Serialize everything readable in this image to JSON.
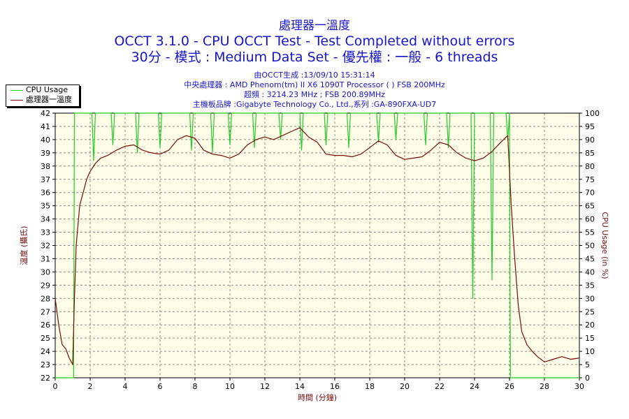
{
  "header": {
    "title": "處理器一溫度",
    "subtitle1": "OCCT 3.1.0 - CPU OCCT Test - Test Completed without errors",
    "subtitle2": "30分 - 模式 : Medium Data Set - 優先權 : 一般 - 6 threads"
  },
  "info": {
    "line1": "由OCCT生成 :13/09/10 15:31:14",
    "line2": "中央處理器 : AMD Phenom(tm) II X6 1090T Processor (  ) FSB 200MHz",
    "line3": "超頻 : 3214.23 MHz ; FSB 200.89MHz",
    "line4": "主機板品牌 :Gigabyte Technology Co., Ltd.,系列 :GA-890FXA-UD7"
  },
  "colors": {
    "temperature": "#7a0b0b",
    "cpu_usage": "#22cc22",
    "plot_background": "#fdfde8",
    "grid": "#8a8a80",
    "title_text": "#1515cc"
  },
  "chart_data": {
    "type": "line",
    "xlabel": "時間 (分鐘)",
    "ylabel_left": "溫度 (攝氏)",
    "ylabel_right": "CPU Usage (in %)",
    "xlim": [
      0,
      30
    ],
    "ylim_left": [
      22,
      42
    ],
    "ylim_right": [
      0,
      100
    ],
    "x_ticks": [
      "0",
      "2",
      "4",
      "6",
      "8",
      "10",
      "12",
      "14",
      "16",
      "18",
      "20",
      "22",
      "24",
      "26",
      "28",
      "30"
    ],
    "y_ticks_left": [
      "22",
      "23",
      "24",
      "25",
      "26",
      "27",
      "28",
      "29",
      "30",
      "31",
      "32",
      "33",
      "34",
      "35",
      "36",
      "37",
      "38",
      "39",
      "40",
      "41",
      "42"
    ],
    "y_ticks_right": [
      "0",
      "5",
      "10",
      "15",
      "20",
      "25",
      "30",
      "35",
      "40",
      "45",
      "50",
      "55",
      "60",
      "65",
      "70",
      "75",
      "80",
      "85",
      "90",
      "95",
      "100"
    ],
    "grid": true,
    "legend_position": "top-left",
    "series": [
      {
        "name": "CPU Usage",
        "axis": "right",
        "x": [
          0,
          0.95,
          1.0,
          1.05,
          1.1,
          1.5,
          2.1,
          2.2,
          2.3,
          3.2,
          3.3,
          3.4,
          4.6,
          4.7,
          4.8,
          5.9,
          6.0,
          6.1,
          7.7,
          7.8,
          7.9,
          8.9,
          9.0,
          9.1,
          9.9,
          10.0,
          10.1,
          11.3,
          11.4,
          11.5,
          12.8,
          12.9,
          13.0,
          14.0,
          14.1,
          14.2,
          15.4,
          15.5,
          15.6,
          16.7,
          16.8,
          16.9,
          18.4,
          18.5,
          18.6,
          19.4,
          19.5,
          19.6,
          21.1,
          21.2,
          21.3,
          22.4,
          22.5,
          22.6,
          23.8,
          23.9,
          24.0,
          24.9,
          25.0,
          25.1,
          25.8,
          25.9,
          26.0,
          26.05,
          26.1,
          30
        ],
        "values": [
          0,
          0,
          0,
          0,
          100,
          100,
          100,
          82,
          100,
          100,
          88,
          100,
          100,
          85,
          100,
          100,
          87,
          100,
          100,
          86,
          100,
          100,
          85,
          100,
          100,
          88,
          100,
          100,
          87,
          100,
          100,
          90,
          100,
          100,
          86,
          100,
          100,
          88,
          100,
          100,
          87,
          100,
          100,
          89,
          100,
          100,
          90,
          100,
          100,
          88,
          100,
          100,
          87,
          100,
          100,
          30,
          100,
          100,
          37,
          100,
          100,
          90,
          100,
          0,
          0,
          0
        ]
      },
      {
        "name": "處理器一溫度",
        "axis": "left",
        "x": [
          0,
          0.2,
          0.4,
          0.6,
          0.8,
          1.0,
          1.1,
          1.2,
          1.4,
          1.6,
          1.8,
          2.0,
          2.3,
          2.6,
          3.0,
          3.5,
          4.0,
          4.5,
          5.0,
          5.5,
          6.0,
          6.5,
          7.0,
          7.5,
          8.0,
          8.5,
          9.0,
          9.5,
          10.0,
          10.5,
          11.0,
          11.5,
          12.0,
          12.5,
          13.0,
          13.5,
          14.0,
          14.5,
          15.0,
          15.5,
          16.0,
          16.5,
          17.0,
          17.5,
          18.0,
          18.5,
          19.0,
          19.5,
          20.0,
          20.5,
          21.0,
          21.5,
          22.0,
          22.5,
          23.0,
          23.5,
          24.0,
          24.5,
          25.0,
          25.5,
          25.9,
          26.1,
          26.3,
          26.5,
          26.7,
          27.0,
          27.3,
          27.6,
          28.0,
          28.5,
          29.0,
          29.5,
          30.0
        ],
        "values": [
          28,
          26,
          24.5,
          24.2,
          23.5,
          23,
          28,
          32,
          35,
          36,
          37,
          37.6,
          38.2,
          38.6,
          38.8,
          39.2,
          39.5,
          39.6,
          39.2,
          39.0,
          38.9,
          39.2,
          40.0,
          40.3,
          40.1,
          39.2,
          38.9,
          38.8,
          38.6,
          38.9,
          39.6,
          40.0,
          40.2,
          40.0,
          40.3,
          40.6,
          40.9,
          40.2,
          39.8,
          38.9,
          38.8,
          38.8,
          38.7,
          38.9,
          39.4,
          39.9,
          39.6,
          38.8,
          38.5,
          38.6,
          38.7,
          39.2,
          39.8,
          39.6,
          39.0,
          38.6,
          38.4,
          38.6,
          39.1,
          39.8,
          40.3,
          35,
          31,
          27.5,
          25.5,
          24.5,
          24,
          23.6,
          23.2,
          23.4,
          23.6,
          23.4,
          23.5
        ]
      }
    ]
  }
}
